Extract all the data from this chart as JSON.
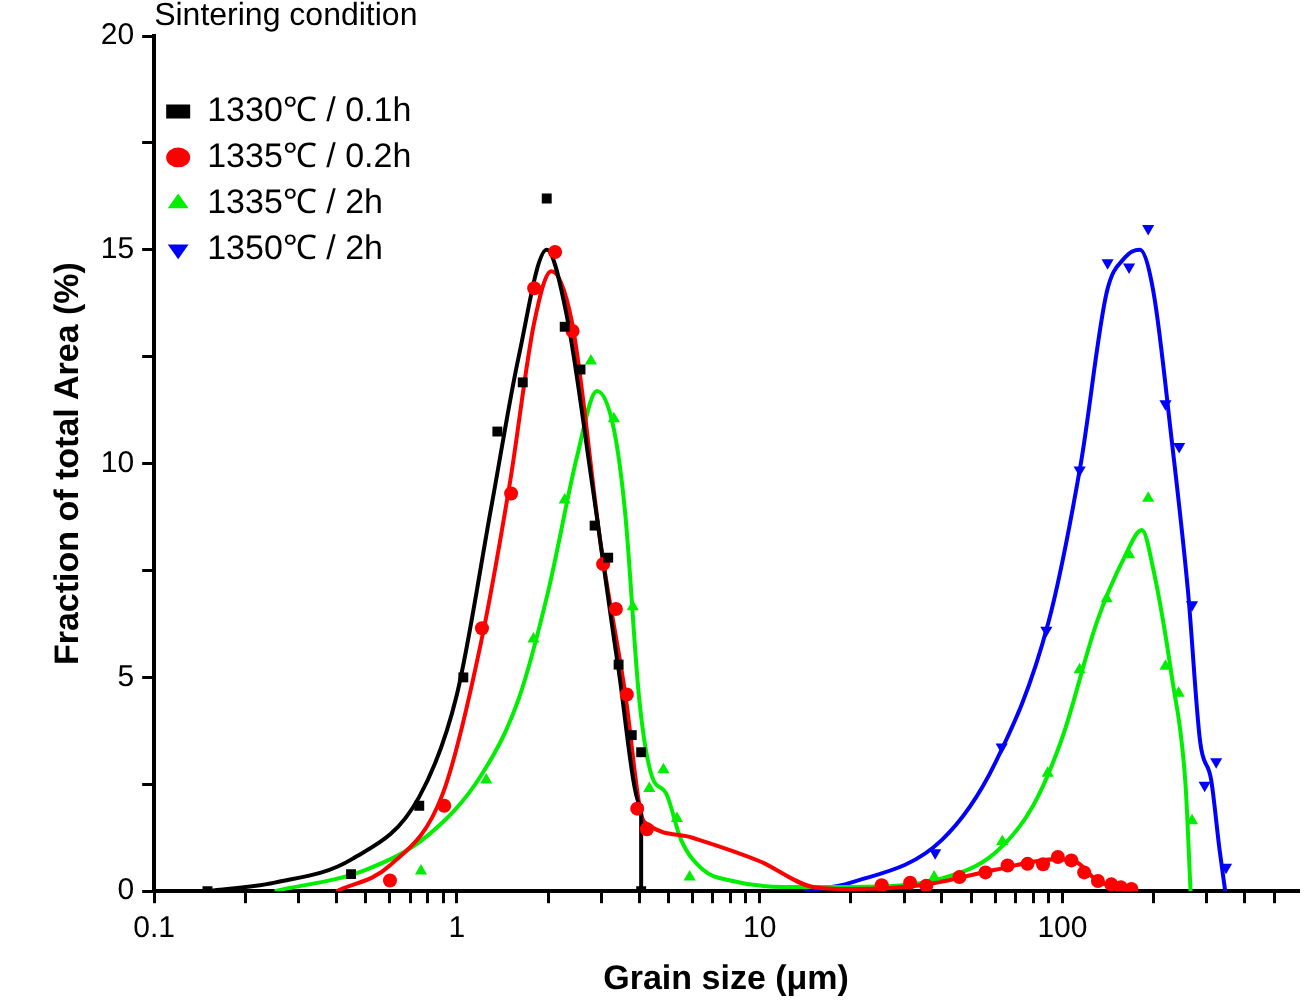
{
  "chart_data": {
    "type": "scatter",
    "xlabel": "Grain size (μm)",
    "ylabel": "Fraction of total Area (%)",
    "legend_title": "Sintering condition",
    "legend": "top left",
    "grid": false,
    "log": "x",
    "xlim": [
      0.1,
      600
    ],
    "ylim": [
      0,
      20
    ],
    "xticks": [
      0.1,
      {
        "value": 0.2,
        "label": null
      },
      {
        "value": 0.3,
        "label": null
      },
      {
        "value": 0.4,
        "label": null
      },
      {
        "value": 0.5,
        "label": null
      },
      {
        "value": 0.6,
        "label": null
      },
      {
        "value": 0.7,
        "label": null
      },
      {
        "value": 0.8,
        "label": null
      },
      {
        "value": 0.9,
        "label": null
      },
      1,
      {
        "value": 2,
        "label": null
      },
      {
        "value": 3,
        "label": null
      },
      {
        "value": 4,
        "label": null
      },
      {
        "value": 5,
        "label": null
      },
      {
        "value": 6,
        "label": null
      },
      {
        "value": 7,
        "label": null
      },
      {
        "value": 8,
        "label": null
      },
      {
        "value": 9,
        "label": null
      },
      10,
      {
        "value": 20,
        "label": null
      },
      {
        "value": 30,
        "label": null
      },
      {
        "value": 40,
        "label": null
      },
      {
        "value": 50,
        "label": null
      },
      {
        "value": 60,
        "label": null
      },
      {
        "value": 70,
        "label": null
      },
      {
        "value": 80,
        "label": null
      },
      {
        "value": 90,
        "label": null
      },
      100,
      {
        "value": 200,
        "label": null
      },
      {
        "value": 300,
        "label": null
      },
      {
        "value": 400,
        "label": null
      },
      {
        "value": 500,
        "label": null
      }
    ],
    "yticks": [
      0,
      {
        "value": 2.5,
        "label": null
      },
      5,
      {
        "value": 7.5,
        "label": null
      },
      10,
      {
        "value": 12.5,
        "label": null
      },
      15,
      {
        "value": 17.5,
        "label": null
      },
      20
    ],
    "series": [
      {
        "name": "1330℃ / 0.1h",
        "marker": "square",
        "color": "#000000",
        "x": [
          0.15,
          0.447,
          0.751,
          1.05,
          1.36,
          1.65,
          1.98,
          2.27,
          2.56,
          2.85,
          3.16,
          3.42,
          3.78,
          4.06,
          4.06
        ],
        "values": [
          0,
          0.4,
          2.0,
          5.0,
          10.75,
          11.9,
          16.2,
          13.2,
          12.2,
          8.55,
          7.8,
          5.3,
          3.65,
          3.25,
          0
        ]
      },
      {
        "name": "1335℃ / 0.2h",
        "marker": "circle",
        "color": "#ff0000",
        "x": [
          0.601,
          0.908,
          1.21,
          1.51,
          1.8,
          2.11,
          2.41,
          3.04,
          3.35,
          3.64,
          3.94,
          4.24,
          25.3,
          31.4,
          35.5,
          45.7,
          55.7,
          65.9,
          76.7,
          86.3,
          96.6,
          107,
          118,
          131,
          145,
          156,
          169
        ],
        "values": [
          0.25,
          2.0,
          6.15,
          9.3,
          14.1,
          14.95,
          13.1,
          7.65,
          6.6,
          4.6,
          1.93,
          1.45,
          0.14,
          0.2,
          0.13,
          0.33,
          0.44,
          0.6,
          0.64,
          0.63,
          0.8,
          0.72,
          0.44,
          0.24,
          0.16,
          0.09,
          0.05
        ]
      },
      {
        "name": "1335℃ / 2h",
        "marker": "triangle",
        "color": "#00ee00",
        "x": [
          0.761,
          1.25,
          1.79,
          2.27,
          2.77,
          3.3,
          3.81,
          4.32,
          4.81,
          5.33,
          5.87,
          37.7,
          63.3,
          89.4,
          114,
          140,
          166,
          192,
          219,
          242,
          268
        ],
        "values": [
          0.47,
          2.6,
          5.9,
          9.15,
          12.4,
          11.05,
          6.65,
          2.4,
          2.84,
          1.7,
          0.33,
          0.33,
          1.16,
          2.76,
          5.18,
          6.84,
          7.87,
          9.19,
          5.26,
          4.63,
          1.65
        ]
      },
      {
        "name": "1350℃ / 2h",
        "marker": "triangle-down",
        "color": "#0000ff",
        "x": [
          38,
          63,
          88.5,
          114,
          141,
          166,
          192,
          219,
          243,
          268,
          295,
          322,
          347
        ],
        "values": [
          0.9,
          3.37,
          6.1,
          9.85,
          14.7,
          14.6,
          15.5,
          11.4,
          10.4,
          6.7,
          2.48,
          3.03,
          0.56
        ]
      },
      {
        "type": "line",
        "marker": "none",
        "color": "#000000",
        "x": [
          0.15,
          0.25,
          0.45,
          0.75,
          1.0,
          1.3,
          1.6,
          1.98,
          2.3,
          2.8,
          3.4,
          4.06,
          4.06
        ],
        "values": [
          0,
          0.2,
          0.75,
          2.2,
          4.6,
          9.0,
          12.5,
          15.0,
          13.5,
          9.5,
          5.3,
          2.0,
          0
        ]
      },
      {
        "type": "line",
        "marker": "none",
        "color": "#ff0000",
        "x": [
          0.4,
          0.6,
          0.9,
          1.2,
          1.5,
          1.8,
          2.05,
          2.4,
          3.0,
          3.6,
          4.06,
          4.3,
          6,
          10,
          15,
          20,
          35,
          60,
          95,
          110,
          130,
          160,
          170
        ],
        "values": [
          0,
          0.6,
          2.3,
          5.8,
          9.6,
          13.3,
          14.5,
          13.3,
          8.0,
          4.6,
          1.8,
          1.55,
          1.25,
          0.7,
          0.1,
          0.05,
          0.15,
          0.5,
          0.75,
          0.7,
          0.25,
          0.05,
          0
        ]
      },
      {
        "type": "line",
        "marker": "none",
        "color": "#00ee00",
        "x": [
          0.25,
          0.5,
          0.8,
          1.2,
          1.6,
          2.0,
          2.5,
          2.9,
          3.3,
          3.6,
          4.0,
          4.4,
          4.9,
          5.5,
          6.5,
          8,
          12,
          20,
          40,
          60,
          80,
          100,
          130,
          160,
          183,
          200,
          230,
          255,
          265
        ],
        "values": [
          0,
          0.5,
          1.3,
          2.7,
          4.5,
          7.0,
          10.2,
          11.7,
          10.8,
          8.8,
          4.5,
          2.7,
          2.3,
          1.2,
          0.5,
          0.25,
          0.1,
          0.1,
          0.3,
          0.9,
          2.0,
          3.6,
          6.3,
          7.8,
          8.45,
          7.5,
          5.0,
          2.5,
          0
        ]
      },
      {
        "type": "line",
        "marker": "none",
        "color": "#0000ff",
        "x": [
          14,
          20,
          40,
          60,
          90,
          115,
          140,
          160,
          180,
          200,
          230,
          260,
          285,
          310,
          330,
          345
        ],
        "values": [
          0,
          0.2,
          1.2,
          3.0,
          6.3,
          10.0,
          14.0,
          14.8,
          15.0,
          14.0,
          10.5,
          7.0,
          3.5,
          2.6,
          1.0,
          0
        ]
      }
    ]
  }
}
